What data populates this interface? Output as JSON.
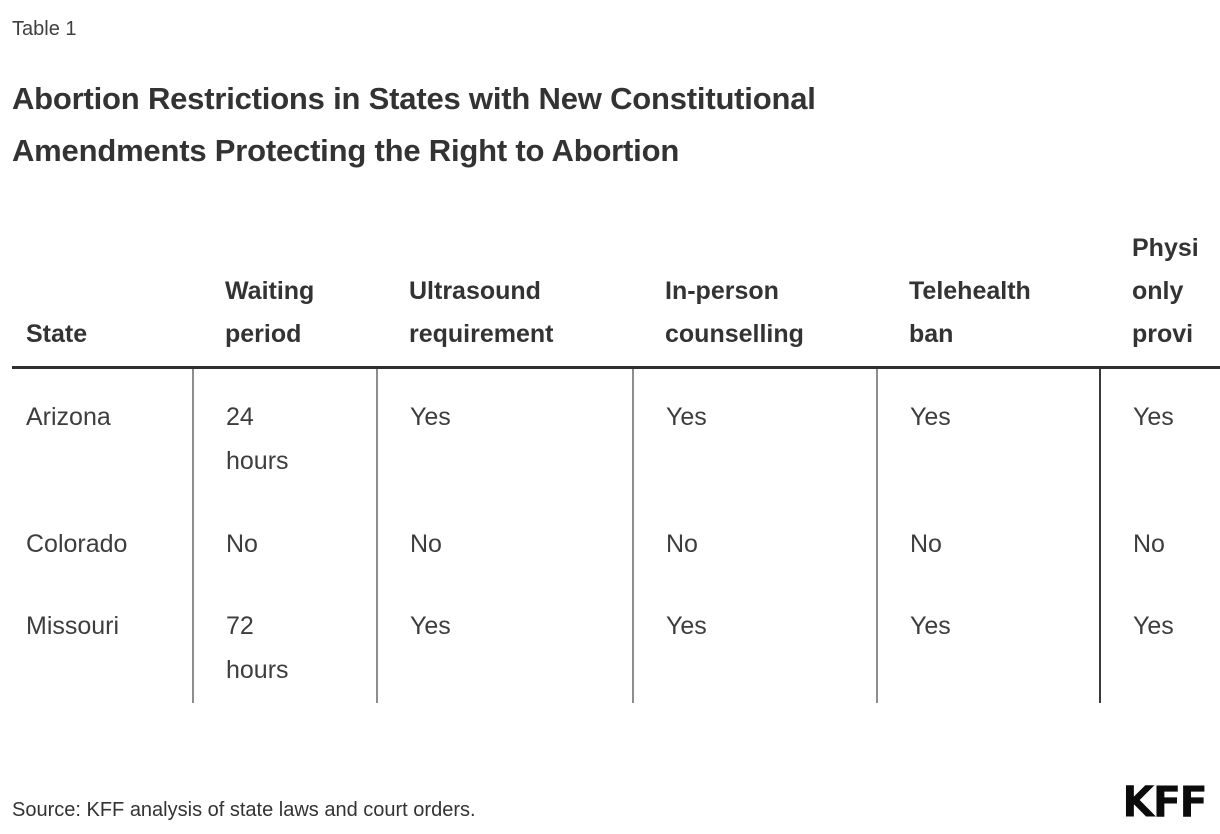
{
  "page": {
    "table_label": "Table 1",
    "title": "Abortion Restrictions in States with New Constitutional\nAmendments Protecting the Right to Abortion",
    "source": "Source: KFF analysis of state laws and court orders.",
    "logo_text": "KFF"
  },
  "table": {
    "columns": [
      "State",
      "Waiting\nperiod",
      "Ultrasound\nrequirement",
      "In-person\ncounselling",
      "Telehealth\nban",
      "Physi\nonly\nprovi"
    ],
    "rows": [
      [
        "Arizona",
        "24\nhours",
        "Yes",
        "Yes",
        "Yes",
        "Yes"
      ],
      [
        "Colorado",
        "No",
        "No",
        "No",
        "No",
        "No"
      ],
      [
        "Missouri",
        "72\nhours",
        "Yes",
        "Yes",
        "Yes",
        "Yes"
      ]
    ]
  },
  "chart_data": {
    "type": "table",
    "title": "Abortion Restrictions in States with New Constitutional Amendments Protecting the Right to Abortion",
    "table_label": "Table 1",
    "columns": [
      "State",
      "Waiting period",
      "Ultrasound requirement",
      "In-person counselling",
      "Telehealth ban",
      "Physi only provi (header clipped at right edge of image)"
    ],
    "rows": [
      [
        "Arizona",
        "24 hours",
        "Yes",
        "Yes",
        "Yes",
        "Yes"
      ],
      [
        "Colorado",
        "No",
        "No",
        "No",
        "No",
        "No"
      ],
      [
        "Missouri",
        "72 hours",
        "Yes",
        "Yes",
        "Yes",
        "Yes"
      ]
    ],
    "source": "Source: KFF analysis of state laws and court orders.",
    "layout_hints": {
      "header_rule": "thick dark line under header row",
      "column_separators": "gray vertical lines in body only; separator before last column is dark",
      "row_separators": "none",
      "last_column_clipped": true
    }
  },
  "colors": {
    "bg": "#ffffff",
    "text-dark": "#333333",
    "text-body": "#3d3d3d",
    "header-rule": "#2f2f2f",
    "rule-gray": "#8d8d8d",
    "rule-dark": "#3a3a3a",
    "logo": "#0b0b0b"
  }
}
